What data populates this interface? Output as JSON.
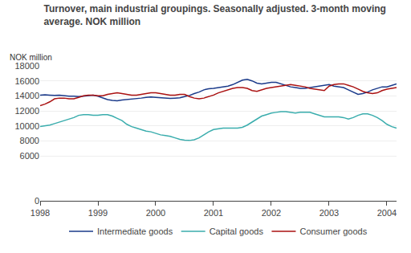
{
  "chart_data": {
    "type": "line",
    "title": "Turnover, main industrial groupings. Seasonally adjusted. 3-month moving\naverage. NOK million",
    "y_label": "NOK million",
    "x": [
      1998,
      1998.08334,
      1998.16668,
      1998.25001,
      1998.33335,
      1998.41669,
      1998.50003,
      1998.58336,
      1998.6667,
      1998.75004,
      1998.83338,
      1998.91672,
      1999.00005,
      1999.08339,
      1999.16673,
      1999.25007,
      1999.33341,
      1999.41674,
      1999.50008,
      1999.58342,
      1999.66676,
      1999.75009,
      1999.83343,
      1999.91677,
      2000.00011,
      2000.08345,
      2000.16678,
      2000.25012,
      2000.33346,
      2000.4168,
      2000.50014,
      2000.58347,
      2000.66681,
      2000.75015,
      2000.83349,
      2000.91682,
      2001.00016,
      2001.0835,
      2001.16684,
      2001.25018,
      2001.33351,
      2001.41685,
      2001.50019,
      2001.58353,
      2001.66686,
      2001.7502,
      2001.83354,
      2001.91688,
      2002.00022,
      2002.08355,
      2002.16689,
      2002.25023,
      2002.33357,
      2002.41691,
      2002.50024,
      2002.58358,
      2002.66692,
      2002.75026,
      2002.83359,
      2002.91693,
      2003.00027,
      2003.08361,
      2003.16695,
      2003.25028,
      2003.33362,
      2003.41696,
      2003.5003,
      2003.58364,
      2003.66697,
      2003.75031,
      2003.83365,
      2003.91699,
      2004.00032,
      2004.08366,
      2004.167
    ],
    "series": [
      {
        "name": "Intermediate goods",
        "color": "#1a3a8a",
        "values": [
          14100,
          14150,
          14100,
          14050,
          14100,
          14000,
          13950,
          13950,
          13900,
          13950,
          14050,
          14100,
          13950,
          13700,
          13500,
          13400,
          13350,
          13450,
          13500,
          13550,
          13600,
          13700,
          13800,
          13850,
          13800,
          13750,
          13700,
          13650,
          13700,
          13750,
          13900,
          14050,
          14300,
          14500,
          14800,
          14950,
          15000,
          15100,
          15200,
          15300,
          15500,
          15800,
          16100,
          16200,
          16000,
          15700,
          15600,
          15700,
          15800,
          15800,
          15600,
          15400,
          15200,
          15100,
          15000,
          15000,
          15100,
          15200,
          15300,
          15400,
          15500,
          15300,
          15200,
          15100,
          14800,
          14500,
          14200,
          14300,
          14500,
          14800,
          15000,
          15200,
          15200,
          15400,
          15600
        ]
      },
      {
        "name": "Capital goods",
        "color": "#3aadad",
        "values": [
          9900,
          10000,
          10100,
          10300,
          10500,
          10700,
          10900,
          11100,
          11400,
          11500,
          11500,
          11400,
          11400,
          11500,
          11500,
          11300,
          11000,
          10700,
          10200,
          9900,
          9700,
          9500,
          9300,
          9200,
          9000,
          8800,
          8700,
          8600,
          8400,
          8200,
          8100,
          8050,
          8150,
          8400,
          8800,
          9200,
          9500,
          9600,
          9700,
          9700,
          9700,
          9700,
          9800,
          10100,
          10500,
          10900,
          11300,
          11500,
          11700,
          11800,
          11900,
          11900,
          11800,
          11700,
          11800,
          11800,
          11800,
          11600,
          11400,
          11200,
          11200,
          11200,
          11200,
          11100,
          10900,
          11100,
          11400,
          11600,
          11600,
          11400,
          11100,
          10700,
          10200,
          9900,
          9700
        ]
      },
      {
        "name": "Consumer goods",
        "color": "#aa1111",
        "values": [
          12700,
          12900,
          13200,
          13600,
          13700,
          13700,
          13600,
          13600,
          13800,
          14000,
          14100,
          14100,
          14000,
          14000,
          14200,
          14300,
          14400,
          14300,
          14200,
          14100,
          14100,
          14200,
          14300,
          14400,
          14400,
          14300,
          14200,
          14100,
          14100,
          14200,
          14200,
          13900,
          13700,
          13600,
          13700,
          13900,
          14100,
          14400,
          14600,
          14800,
          15000,
          15100,
          15100,
          15000,
          14700,
          14600,
          14800,
          15000,
          15100,
          15200,
          15300,
          15400,
          15500,
          15400,
          15300,
          15200,
          15000,
          14900,
          14800,
          14700,
          15300,
          15500,
          15600,
          15600,
          15400,
          15200,
          14900,
          14600,
          14400,
          14300,
          14400,
          14700,
          14900,
          15000,
          15100
        ]
      }
    ],
    "xlim": [
      1998,
      2004.167
    ],
    "xticks": [
      1998,
      1999,
      2000,
      2001,
      2002,
      2003,
      2004
    ],
    "ylim": [
      0,
      18000
    ],
    "yticks": [
      0,
      6000,
      8000,
      10000,
      12000,
      14000,
      16000,
      18000
    ],
    "grid": "y",
    "legend": "bottom"
  }
}
